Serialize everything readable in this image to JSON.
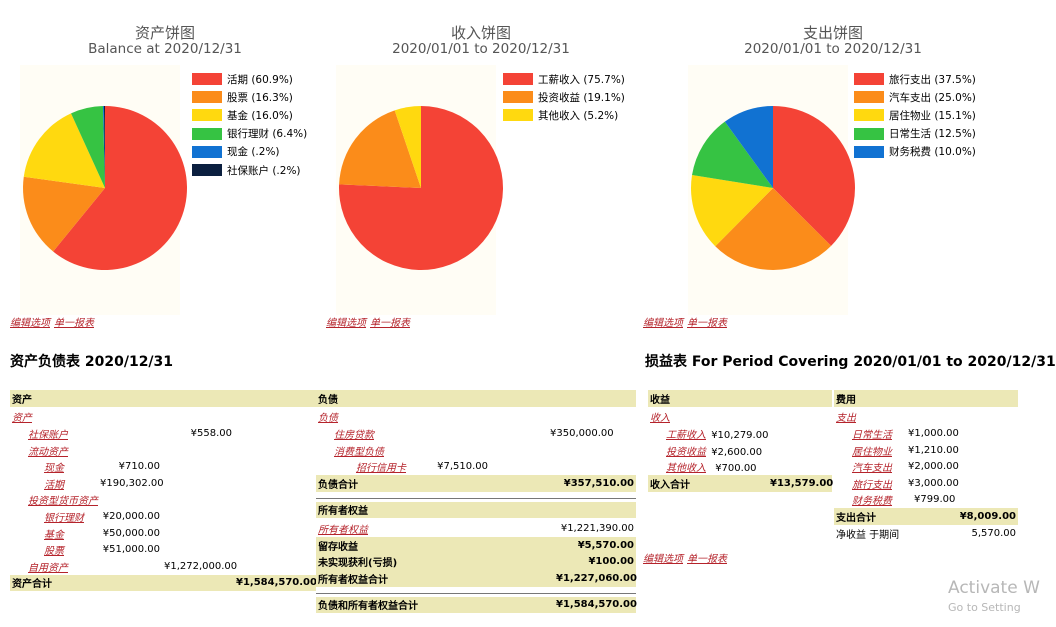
{
  "charts": [
    {
      "title": "资产饼图",
      "subtitle": "Balance at 2020/12/31",
      "legend": [
        {
          "label": "活期 (60.9%)",
          "color": "#f44336"
        },
        {
          "label": "股票 (16.3%)",
          "color": "#fb8c1a"
        },
        {
          "label": "基金 (16.0%)",
          "color": "#ffd90f"
        },
        {
          "label": "银行理财 (6.4%)",
          "color": "#36c343"
        },
        {
          "label": "现金 (.2%)",
          "color": "#1172d2"
        },
        {
          "label": "社保账户 (.2%)",
          "color": "#0b1f3f"
        }
      ]
    },
    {
      "title": "收入饼图",
      "subtitle": "2020/01/01 to 2020/12/31",
      "legend": [
        {
          "label": "工薪收入 (75.7%)",
          "color": "#f44336"
        },
        {
          "label": "投资收益 (19.1%)",
          "color": "#fb8c1a"
        },
        {
          "label": "其他收入 (5.2%)",
          "color": "#ffd90f"
        }
      ]
    },
    {
      "title": "支出饼图",
      "subtitle": "2020/01/01 to 2020/12/31",
      "legend": [
        {
          "label": "旅行支出 (37.5%)",
          "color": "#f44336"
        },
        {
          "label": "汽车支出 (25.0%)",
          "color": "#fb8c1a"
        },
        {
          "label": "居住物业 (15.1%)",
          "color": "#ffd90f"
        },
        {
          "label": "日常生活 (12.5%)",
          "color": "#36c343"
        },
        {
          "label": "财务税费 (10.0%)",
          "color": "#1172d2"
        }
      ]
    }
  ],
  "chart_data": [
    {
      "type": "pie",
      "title": "资产饼图",
      "subtitle": "Balance at 2020/12/31",
      "categories": [
        "活期",
        "股票",
        "基金",
        "银行理财",
        "现金",
        "社保账户"
      ],
      "values": [
        60.9,
        16.3,
        16.0,
        6.4,
        0.2,
        0.2
      ],
      "colors": [
        "#f44336",
        "#fb8c1a",
        "#ffd90f",
        "#36c343",
        "#1172d2",
        "#0b1f3f"
      ]
    },
    {
      "type": "pie",
      "title": "收入饼图",
      "subtitle": "2020/01/01 to 2020/12/31",
      "categories": [
        "工薪收入",
        "投资收益",
        "其他收入"
      ],
      "values": [
        75.7,
        19.1,
        5.2
      ],
      "colors": [
        "#f44336",
        "#fb8c1a",
        "#ffd90f"
      ]
    },
    {
      "type": "pie",
      "title": "支出饼图",
      "subtitle": "2020/01/01 to 2020/12/31",
      "categories": [
        "旅行支出",
        "汽车支出",
        "居住物业",
        "日常生活",
        "财务税费"
      ],
      "values": [
        37.5,
        25.0,
        15.1,
        12.5,
        10.0
      ],
      "colors": [
        "#f44336",
        "#fb8c1a",
        "#ffd90f",
        "#36c343",
        "#1172d2"
      ]
    }
  ],
  "links": {
    "edit": "编辑选项",
    "single": "单一报表"
  },
  "balance": {
    "title": "资产负债表 2020/12/31",
    "assets": {
      "header": "资产",
      "root": "资产",
      "social": "社保账户",
      "social_amt": "¥558.00",
      "current": "流动资产",
      "cash": "现金",
      "cash_amt": "¥710.00",
      "demand": "活期",
      "demand_amt": "¥190,302.00",
      "invest": "投资型货币资产",
      "wm": "银行理财",
      "wm_amt": "¥20,000.00",
      "fund": "基金",
      "fund_amt": "¥50,000.00",
      "stock": "股票",
      "stock_amt": "¥51,000.00",
      "property": "自用资产",
      "property_amt": "¥1,272,000.00",
      "total_label": "资产合计",
      "total": "¥1,584,570.00"
    },
    "liab": {
      "header": "负债",
      "root": "负债",
      "mortgage": "住房贷款",
      "mortgage_amt": "¥350,000.00",
      "consumer": "消费型负债",
      "card": "招行信用卡",
      "card_amt": "¥7,510.00",
      "total_label": "负债合计",
      "total": "¥357,510.00",
      "equity_header": "所有者权益",
      "equity": "所有者权益",
      "equity_amt": "¥1,221,390.00",
      "retained": "留存收益",
      "retained_amt": "¥5,570.00",
      "unrealized": "未实现获利(亏损)",
      "unrealized_amt": "¥100.00",
      "equity_total_label": "所有者权益合计",
      "equity_total": "¥1,227,060.00",
      "grand_label": "负债和所有者权益合计",
      "grand": "¥1,584,570.00"
    }
  },
  "income": {
    "title": "损益表 For Period Covering 2020/01/01 to 2020/12/31",
    "rev": {
      "header": "收益",
      "root": "收入",
      "salary": "工薪收入",
      "salary_amt": "¥10,279.00",
      "invest": "投资收益",
      "invest_amt": "¥2,600.00",
      "other": "其他收入",
      "other_amt": "¥700.00",
      "total_label": "收入合计",
      "total": "¥13,579.00"
    },
    "exp": {
      "header": "费用",
      "root": "支出",
      "daily": "日常生活",
      "daily_amt": "¥1,000.00",
      "housing": "居住物业",
      "housing_amt": "¥1,210.00",
      "car": "汽车支出",
      "car_amt": "¥2,000.00",
      "travel": "旅行支出",
      "travel_amt": "¥3,000.00",
      "tax": "财务税费",
      "tax_amt": "¥799.00",
      "total_label": "支出合计",
      "total": "¥8,009.00",
      "net_label": "净收益 于期间",
      "net": "5,570.00"
    }
  },
  "watermark": {
    "line1": "Activate W",
    "line2": "Go to Setting"
  }
}
